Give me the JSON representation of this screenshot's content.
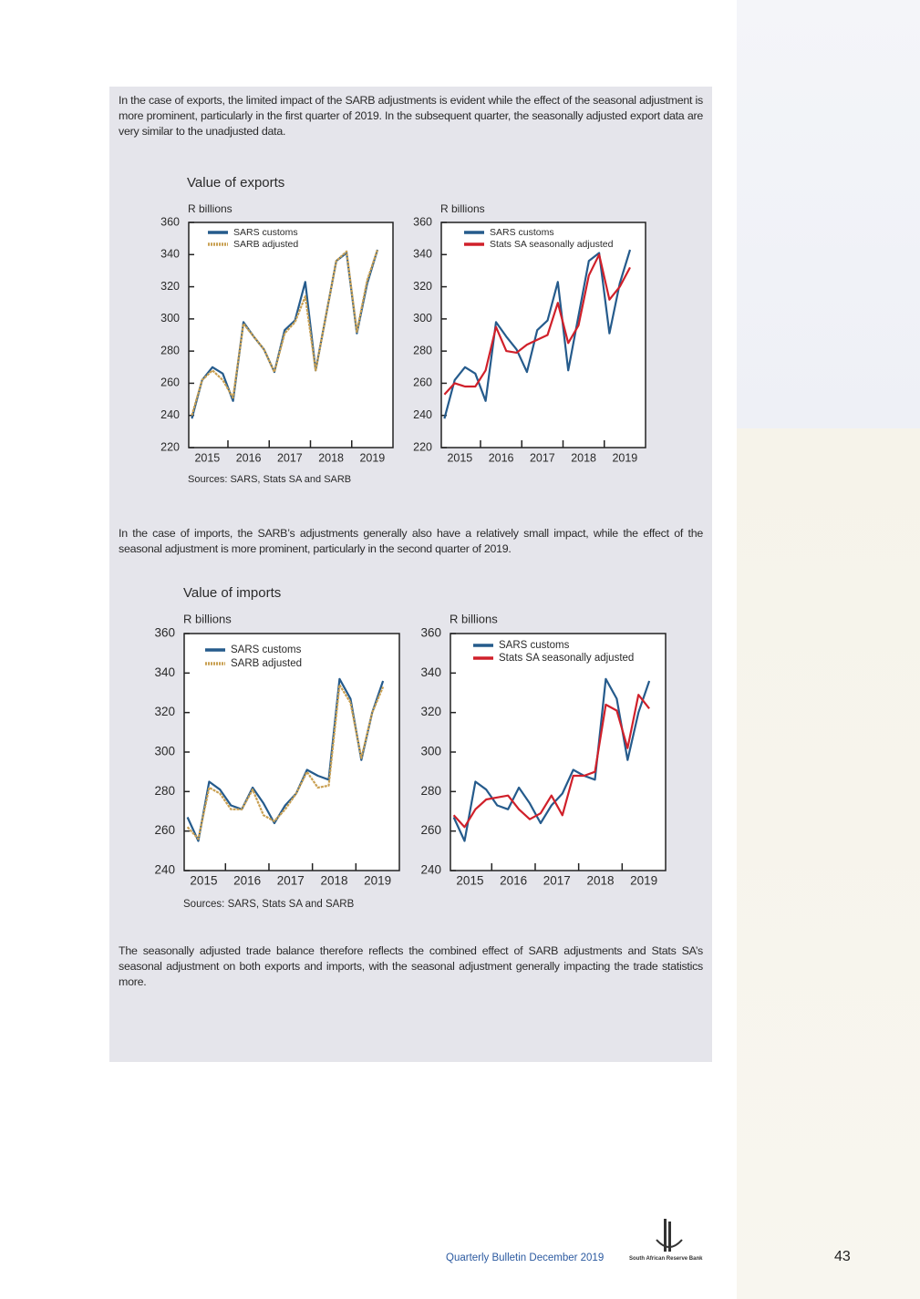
{
  "paragraphs": [
    "In the case of exports, the limited impact of the SARB adjustments is evident while the effect of the seasonal adjustment is more prominent, particularly in the first quarter of 2019. In the subsequent quarter, the seasonally adjusted export data are very similar to the unadjusted data.",
    "In the case of imports, the SARB’s adjustments generally also have a relatively small impact, while the effect of the seasonal adjustment is more prominent, particularly in the second quarter of 2019.",
    "The seasonally adjusted trade balance therefore reflects the combined effect of SARB adjustments and Stats SA’s seasonal adjustment on both exports and imports, with the seasonal adjustment generally impacting the trade statistics more."
  ],
  "figures": [
    {
      "title": "Value of exports",
      "source": "Sources: SARS, Stats SA and SARB"
    },
    {
      "title": "Value of imports",
      "source": "Sources: SARS, Stats SA and SARB"
    }
  ],
  "chart_data": [
    {
      "type": "line",
      "ylabel": "R billions",
      "x_labels": [
        "2015",
        "2016",
        "2017",
        "2018",
        "2019"
      ],
      "ylim": [
        220,
        360
      ],
      "yticks": [
        220,
        240,
        260,
        280,
        300,
        320,
        340,
        360
      ],
      "series": [
        {
          "name": "SARS customs",
          "color": "#255b8c",
          "values": [
            238,
            262,
            270,
            266,
            249,
            298,
            289,
            281,
            267,
            293,
            299,
            323,
            268,
            302,
            336,
            341,
            291,
            322,
            343
          ]
        },
        {
          "name": "SARB adjusted",
          "color": "#c9a052",
          "values": [
            240,
            262,
            268,
            262,
            251,
            297,
            289,
            281,
            267,
            291,
            298,
            314,
            268,
            302,
            336,
            342,
            292,
            324,
            343
          ]
        }
      ]
    },
    {
      "type": "line",
      "ylabel": "R billions",
      "x_labels": [
        "2015",
        "2016",
        "2017",
        "2018",
        "2019"
      ],
      "ylim": [
        220,
        360
      ],
      "yticks": [
        220,
        240,
        260,
        280,
        300,
        320,
        340,
        360
      ],
      "series": [
        {
          "name": "SARS customs",
          "color": "#255b8c",
          "values": [
            238,
            262,
            270,
            266,
            249,
            298,
            289,
            281,
            267,
            293,
            299,
            323,
            268,
            302,
            336,
            341,
            291,
            322,
            343
          ]
        },
        {
          "name": "Stats SA seasonally adjusted",
          "color": "#d0202a",
          "values": [
            253,
            260,
            258,
            258,
            268,
            295,
            280,
            279,
            284,
            287,
            290,
            310,
            285,
            296,
            327,
            340,
            312,
            320,
            332
          ]
        }
      ]
    },
    {
      "type": "line",
      "ylabel": "R billions",
      "x_labels": [
        "2015",
        "2016",
        "2017",
        "2018",
        "2019"
      ],
      "ylim": [
        240,
        360
      ],
      "yticks": [
        240,
        260,
        280,
        300,
        320,
        340,
        360
      ],
      "series": [
        {
          "name": "SARS customs",
          "color": "#255b8c",
          "values": [
            267,
            255,
            285,
            281,
            273,
            271,
            282,
            274,
            264,
            273,
            279,
            291,
            288,
            286,
            337,
            327,
            296,
            320,
            336
          ]
        },
        {
          "name": "SARB adjusted",
          "color": "#c9a052",
          "values": [
            262,
            256,
            282,
            279,
            271,
            271,
            281,
            268,
            265,
            271,
            279,
            290,
            282,
            283,
            334,
            325,
            297,
            320,
            333
          ]
        }
      ]
    },
    {
      "type": "line",
      "ylabel": "R billions",
      "x_labels": [
        "2015",
        "2016",
        "2017",
        "2018",
        "2019"
      ],
      "ylim": [
        240,
        360
      ],
      "yticks": [
        240,
        260,
        280,
        300,
        320,
        340,
        360
      ],
      "series": [
        {
          "name": "SARS customs",
          "color": "#255b8c",
          "values": [
            267,
            255,
            285,
            281,
            273,
            271,
            282,
            274,
            264,
            273,
            279,
            291,
            288,
            286,
            337,
            327,
            296,
            320,
            336
          ]
        },
        {
          "name": "Stats SA seasonally adjusted",
          "color": "#d0202a",
          "values": [
            268,
            262,
            271,
            276,
            277,
            278,
            271,
            266,
            269,
            278,
            268,
            288,
            288,
            290,
            324,
            321,
            302,
            329,
            322
          ]
        }
      ]
    }
  ],
  "footer": {
    "publication": "Quarterly Bulletin December 2019",
    "bank": "South African Reserve Bank",
    "page": "43"
  }
}
